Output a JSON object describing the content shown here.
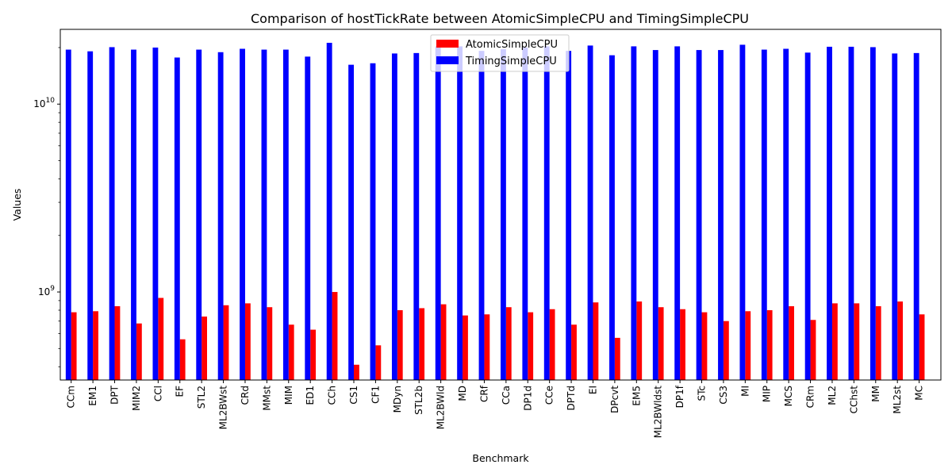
{
  "chart_data": {
    "type": "bar",
    "title": "Comparison of hostTickRate between AtomicSimpleCPU and TimingSimpleCPU",
    "xlabel": "Benchmark",
    "ylabel": "Values",
    "yscale": "log",
    "ylim": [
      340000000,
      25000000000
    ],
    "yticks": [
      {
        "value": 1000000000,
        "base": "10",
        "exp": "9"
      },
      {
        "value": 10000000000,
        "base": "10",
        "exp": "10"
      }
    ],
    "legend_position": "top-center",
    "categories": [
      "CCm",
      "EM1",
      "DPT",
      "MIM2",
      "CCl",
      "EF",
      "STL2",
      "ML2BWst",
      "CRd",
      "MMst",
      "MIM",
      "ED1",
      "CCh",
      "CS1",
      "CF1",
      "MDyn",
      "STL2b",
      "ML2BWld",
      "MD",
      "CRf",
      "CCa",
      "DP1d",
      "CCe",
      "DPTd",
      "EI",
      "DPcvt",
      "EM5",
      "ML2BWldst",
      "DP1f",
      "STc",
      "CS3",
      "MI",
      "MIP",
      "MCS",
      "CRm",
      "ML2",
      "CChst",
      "MM",
      "ML2st",
      "MC"
    ],
    "series": [
      {
        "name": "AtomicSimpleCPU",
        "color": "#ff0000",
        "values": [
          780000000,
          790000000,
          840000000,
          680000000,
          930000000,
          560000000,
          740000000,
          850000000,
          870000000,
          830000000,
          670000000,
          630000000,
          1000000000,
          410000000,
          520000000,
          800000000,
          820000000,
          860000000,
          750000000,
          760000000,
          830000000,
          780000000,
          810000000,
          670000000,
          880000000,
          570000000,
          890000000,
          830000000,
          810000000,
          780000000,
          700000000,
          790000000,
          800000000,
          840000000,
          710000000,
          870000000,
          870000000,
          840000000,
          890000000,
          760000000
        ]
      },
      {
        "name": "TimingSimpleCPU",
        "color": "#0000ff",
        "values": [
          19500000000,
          19100000000,
          20100000000,
          19500000000,
          20000000000,
          17700000000,
          19500000000,
          18900000000,
          19700000000,
          19500000000,
          19500000000,
          17900000000,
          21200000000,
          16200000000,
          16500000000,
          18600000000,
          18700000000,
          20300000000,
          20300000000,
          19200000000,
          19600000000,
          20000000000,
          20300000000,
          19200000000,
          20500000000,
          18200000000,
          20300000000,
          19400000000,
          20300000000,
          19400000000,
          19400000000,
          20700000000,
          19500000000,
          19700000000,
          18800000000,
          20200000000,
          20200000000,
          20100000000,
          18600000000,
          18700000000
        ]
      }
    ]
  }
}
